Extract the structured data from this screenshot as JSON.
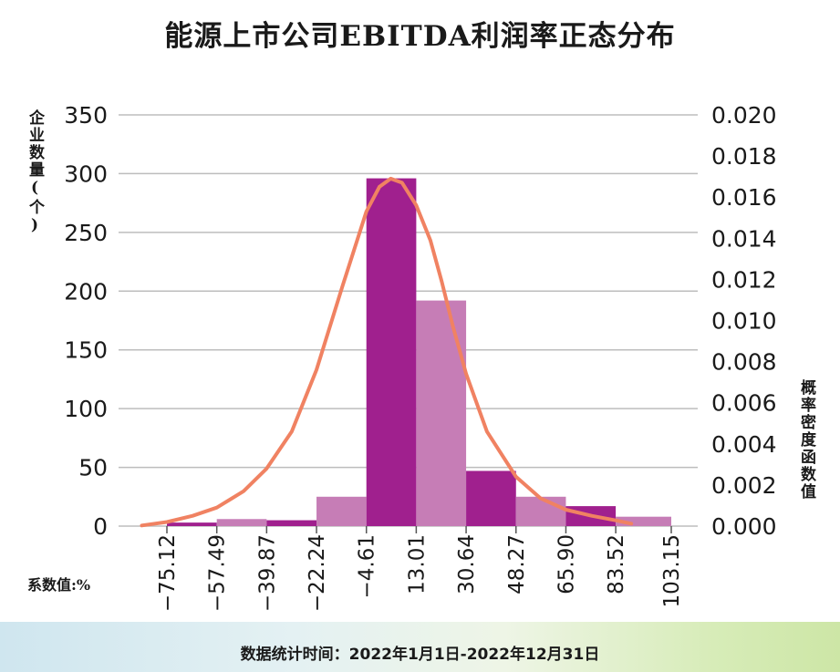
{
  "title": "能源上市公司EBITDA利润率正态分布",
  "footer": "数据统计时间：2022年1月1日-2022年12月31日",
  "colors": {
    "bar_dark": "#a0208e",
    "bar_light": "#c67db6",
    "curve": "#f08262",
    "grid": "#bdbdbd",
    "text": "#1a1a1a"
  },
  "chart_data": {
    "type": "bar",
    "title": "能源上市公司EBITDA利润率正态分布",
    "xlabel": "系数值:%",
    "ylabel": "企业数量(个)",
    "y2label": "概率密度函数值",
    "x_ticks": [
      "-75.12",
      "-57.49",
      "-39.87",
      "-22.24",
      "-4.61",
      "13.01",
      "30.64",
      "48.27",
      "65.90",
      "83.52",
      "103.15"
    ],
    "bins": [
      {
        "from": -75.12,
        "to": -57.49,
        "count": 3
      },
      {
        "from": -57.49,
        "to": -39.87,
        "count": 6
      },
      {
        "from": -39.87,
        "to": -22.24,
        "count": 5
      },
      {
        "from": -22.24,
        "to": -4.61,
        "count": 25
      },
      {
        "from": -4.61,
        "to": 13.01,
        "count": 296
      },
      {
        "from": 13.01,
        "to": 30.64,
        "count": 192
      },
      {
        "from": 30.64,
        "to": 48.27,
        "count": 47
      },
      {
        "from": 48.27,
        "to": 65.9,
        "count": 25
      },
      {
        "from": 65.9,
        "to": 83.52,
        "count": 17
      },
      {
        "from": 83.52,
        "to": 103.15,
        "count": 8
      }
    ],
    "bar_color_pattern": [
      "dark",
      "light"
    ],
    "ylim": [
      0,
      350
    ],
    "y_ticks": [
      0,
      50,
      100,
      150,
      200,
      250,
      300,
      350
    ],
    "y2lim": [
      0,
      0.02
    ],
    "y2_ticks": [
      "0.000",
      "0.002",
      "0.004",
      "0.006",
      "0.008",
      "0.010",
      "0.012",
      "0.014",
      "0.016",
      "0.018",
      "0.020"
    ],
    "density_curve": {
      "x": [
        -84,
        -75.12,
        -66,
        -57.49,
        -48,
        -39.87,
        -31,
        -22.24,
        -13,
        -4.61,
        0,
        4,
        8,
        13.01,
        18,
        22,
        26,
        30.64,
        38,
        48.27,
        57,
        65.9,
        75,
        83.52,
        89
      ],
      "y": [
        3e-05,
        0.0002,
        0.0005,
        0.0009,
        0.0017,
        0.0028,
        0.0046,
        0.0076,
        0.0117,
        0.0153,
        0.0165,
        0.0169,
        0.0167,
        0.0156,
        0.0139,
        0.0119,
        0.0097,
        0.0074,
        0.0046,
        0.0024,
        0.00135,
        0.0008,
        0.0005,
        0.00028,
        0.00012
      ]
    },
    "grid": "horizontal"
  }
}
